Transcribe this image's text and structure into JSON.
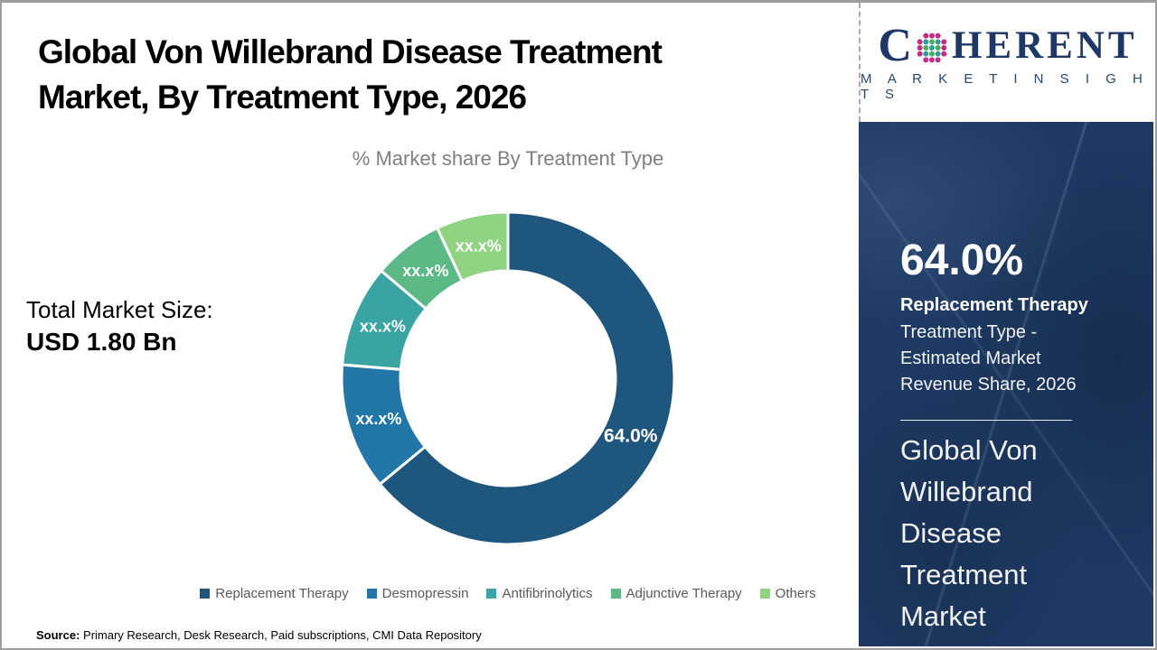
{
  "header": {
    "title_line1": "Global Von Willebrand Disease Treatment",
    "title_line2": "Market, By Treatment Type, 2026",
    "subtitle": "% Market share By Treatment Type"
  },
  "logo": {
    "brand_prefix": "C",
    "brand_suffix": "HERENT",
    "brand_subtitle": "M A R K E T   I N S I G H T S",
    "brand_color": "#1e3764",
    "globe_dot_colors": {
      "outer": "#c02e86",
      "teal": "#2d9ca0",
      "green": "#4cae52"
    }
  },
  "total_market": {
    "label": "Total Market Size:",
    "value": "USD 1.80 Bn"
  },
  "chart_data": {
    "type": "pie",
    "donut": true,
    "title": "% Market share By Treatment Type",
    "categories": [
      "Replacement Therapy",
      "Desmopressin",
      "Antifibrinolytics",
      "Adjunctive Therapy",
      "Others"
    ],
    "values": [
      64.0,
      12.3,
      9.9,
      6.8,
      7.0
    ],
    "values_note": "Only the leading segment value (64.0%) is shown in the image; other segment labels are masked as xx.x% and their values are estimated from arc angles.",
    "labels": [
      "64.0%",
      "xx.x%",
      "xx.x%",
      "xx.x%",
      "xx.x%"
    ],
    "colors": [
      "#1f567e",
      "#2277a8",
      "#3aa3a3",
      "#5cb885",
      "#90d383"
    ],
    "start_angle_deg": 0,
    "direction": "clockwise",
    "legend_position": "bottom"
  },
  "sidebar": {
    "highlight_value": "64.0%",
    "highlight_label": "Replacement Therapy",
    "highlight_description": "Treatment Type - Estimated Market Revenue Share, 2026",
    "panel_title": "Global Von Willebrand Disease Treatment Market",
    "background_color": "#1e3a63"
  },
  "footer": {
    "source_label": "Source:",
    "source_text": " Primary Research, Desk Research, Paid subscriptions, CMI Data Repository"
  }
}
